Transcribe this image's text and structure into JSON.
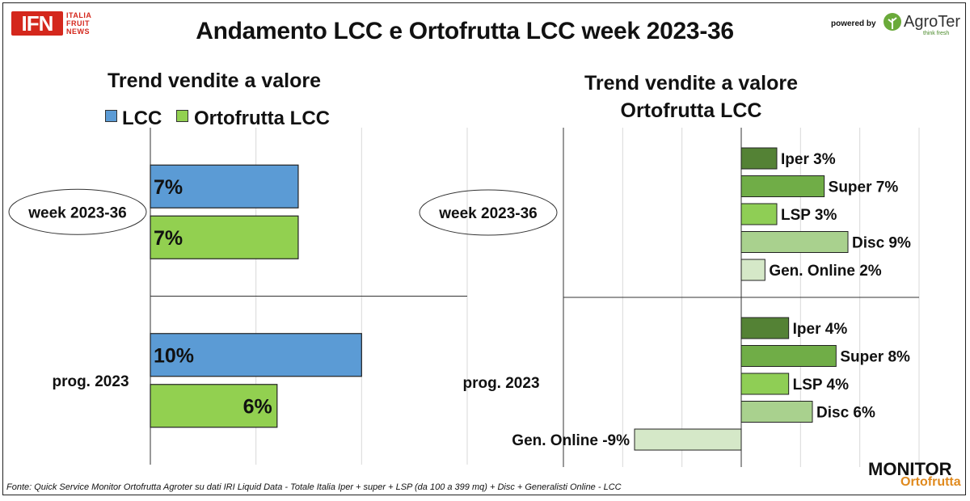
{
  "header": {
    "title": "Andamento LCC e Ortofrutta LCC week 2023-36",
    "ifn_logo": "IFN",
    "ifn_sub": [
      "ITALIA",
      "FRUIT",
      "NEWS"
    ],
    "powered_by": "powered by",
    "agroter_name": "AgroTer",
    "agroter_tag": "think fresh"
  },
  "footer": {
    "source": "Fonte: Quick Service Monitor Ortofrutta Agroter su dati IRI Liquid Data - Totale Italia Iper + super + LSP (da 100 a 399 mq) + Disc + Generalisti Online - LCC",
    "monitor_top": "MONITOR",
    "monitor_bottom": "Ortofrutta"
  },
  "colors": {
    "lcc": "#5b9bd5",
    "ortofrutta": "#92d050",
    "iper": "#548235",
    "super": "#70ad47",
    "lsp": "#8fce55",
    "disc": "#a9d18e",
    "gen_online": "#d5e8c8"
  },
  "chart_data": [
    {
      "type": "bar",
      "orientation": "horizontal",
      "title": "Trend vendite a valore",
      "categories": [
        "week 2023-36",
        "prog. 2023"
      ],
      "series": [
        {
          "name": "LCC",
          "values": [
            7,
            10
          ],
          "labels": [
            "7%",
            "10%"
          ]
        },
        {
          "name": "Ortofrutta LCC",
          "values": [
            7,
            6
          ],
          "labels": [
            "7%",
            "6%"
          ]
        }
      ],
      "unit": "%",
      "xlim": [
        0,
        15
      ],
      "grid": true,
      "legend": "top"
    },
    {
      "type": "bar",
      "orientation": "horizontal",
      "title": "Trend vendite a valore\nOrtofrutta LCC",
      "title_lines": [
        "Trend vendite a valore",
        "Ortofrutta LCC"
      ],
      "categories": [
        "week 2023-36",
        "prog. 2023"
      ],
      "series": [
        {
          "name": "Iper",
          "values": [
            3,
            4
          ],
          "labels": [
            "Iper 3%",
            "Iper 4%"
          ]
        },
        {
          "name": "Super",
          "values": [
            7,
            8
          ],
          "labels": [
            "Super 7%",
            "Super 8%"
          ]
        },
        {
          "name": "LSP",
          "values": [
            3,
            4
          ],
          "labels": [
            "LSP 3%",
            "LSP 4%"
          ]
        },
        {
          "name": "Disc",
          "values": [
            9,
            6
          ],
          "labels": [
            "Disc 9%",
            "Disc 6%"
          ]
        },
        {
          "name": "Gen. Online",
          "values": [
            2,
            -9
          ],
          "labels": [
            "Gen. Online 2%",
            "Gen. Online -9%"
          ]
        }
      ],
      "unit": "%",
      "xlim": [
        -15,
        15
      ],
      "grid": true,
      "legend": "none"
    }
  ]
}
